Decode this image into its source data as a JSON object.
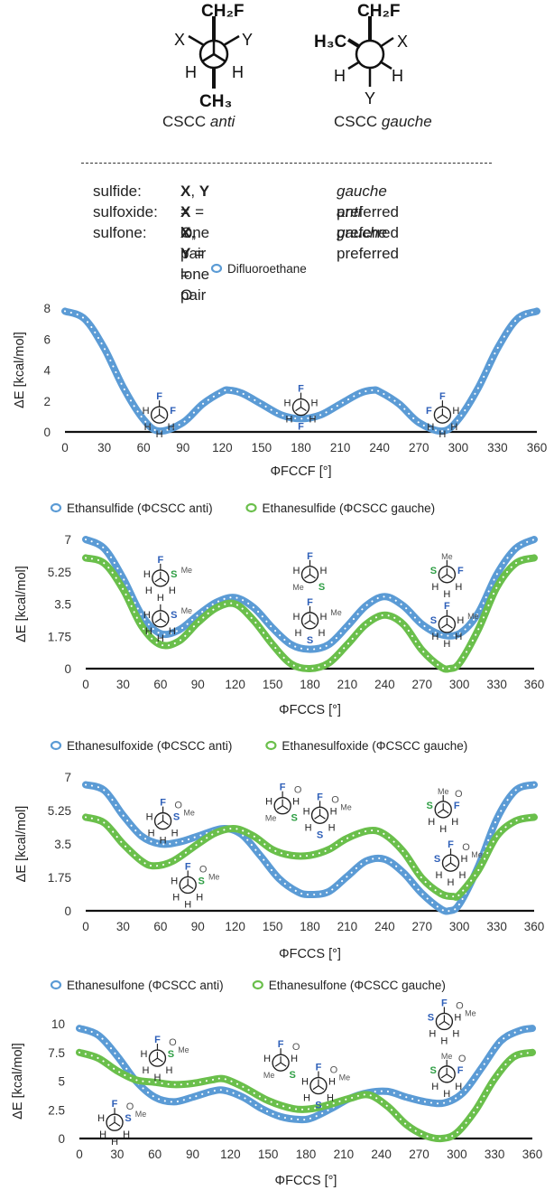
{
  "header": {
    "newman_labels": {
      "anti": {
        "top": "CH₂F",
        "left": "X",
        "right": "Y",
        "lower_left": "H",
        "lower_right": "H",
        "bottom": "CH₃"
      },
      "gauche": {
        "top": "CH₂F",
        "left": "H₃C",
        "right": "X",
        "lower_left": "H",
        "lower_right": "H",
        "bottom": "Y"
      }
    },
    "caption_anti": {
      "prefix": "CSCC ",
      "italic": "anti"
    },
    "caption_gauche": {
      "prefix": "CSCC ",
      "italic": "gauche"
    },
    "rows": [
      {
        "name": "sulfide:",
        "mid_b1": "X",
        "mid_t1": ", ",
        "mid_b2": "Y",
        "mid_t2": " = lone pair",
        "pref_i": "gauche",
        "pref_t": " preferred"
      },
      {
        "name": "sulfoxide:",
        "mid_b1": "X",
        "mid_t1": " = O, ",
        "mid_b2": "Y",
        "mid_t2": " = lone pair",
        "pref_i": "anti",
        "pref_t": " preferred"
      },
      {
        "name": "sulfone:",
        "mid_b1": "X",
        "mid_t1": ", ",
        "mid_b2": "Y",
        "mid_t2": " = O",
        "pref_i": "gauche",
        "pref_t": " preferred"
      }
    ]
  },
  "colors": {
    "blue": "#5b9bd5",
    "green": "#6abf4b",
    "inset_F": "#2e5fb8",
    "inset_S_green": "#2e9e44",
    "inset_S_blue": "#2e5fb8"
  },
  "chart_data": [
    {
      "type": "line",
      "legend": [
        "Difluoroethane"
      ],
      "xlabel": "ΦFCCF [°]",
      "ylabel": "ΔE [kcal/mol]",
      "xlim": [
        0,
        360
      ],
      "xticks": [
        0,
        30,
        60,
        90,
        120,
        150,
        180,
        210,
        240,
        270,
        300,
        330,
        360
      ],
      "ylim": [
        0,
        8
      ],
      "yticks": [
        "0",
        "2",
        "4",
        "6",
        "8"
      ],
      "series": [
        {
          "name": "Difluoroethane",
          "color": "#5b9bd5",
          "x": [
            0,
            15,
            30,
            45,
            60,
            72,
            90,
            105,
            120,
            125,
            135,
            150,
            165,
            180,
            195,
            210,
            225,
            235,
            240,
            255,
            270,
            288,
            300,
            315,
            330,
            345,
            360
          ],
          "y": [
            7.8,
            7.3,
            5.4,
            2.8,
            0.8,
            0.05,
            0.6,
            1.8,
            2.6,
            2.7,
            2.5,
            1.8,
            1.1,
            0.85,
            1.1,
            1.8,
            2.5,
            2.7,
            2.6,
            1.8,
            0.6,
            0.05,
            0.8,
            2.8,
            5.4,
            7.3,
            7.8
          ]
        }
      ],
      "insets": [
        {
          "x": 72,
          "y": 1.1,
          "labels": {
            "top": "F",
            "right": "F",
            "left": "H",
            "ll": "H",
            "lr": "H",
            "bottom": "H"
          }
        },
        {
          "x": 180,
          "y": 1.6,
          "labels": {
            "top": "F",
            "right": "H",
            "left": "H",
            "ll": "H",
            "lr": "H",
            "bottom": "F"
          }
        },
        {
          "x": 288,
          "y": 1.1,
          "labels": {
            "top": "F",
            "right": "H",
            "left": "F",
            "ll": "H",
            "lr": "H",
            "bottom": "H"
          }
        }
      ]
    },
    {
      "type": "line",
      "legend": [
        "Ethansulfide (ΦCSCC anti)",
        "Ethanesulfide (ΦCSCC gauche)"
      ],
      "xlabel": "ΦFCCS [°]",
      "ylabel": "ΔE [kcal/mol]",
      "xlim": [
        0,
        360
      ],
      "xticks": [
        0,
        30,
        60,
        90,
        120,
        150,
        180,
        210,
        240,
        270,
        300,
        330,
        360
      ],
      "ylim": [
        0,
        7
      ],
      "yticks": [
        "0",
        "1.75",
        "3.5",
        "5.25",
        "7"
      ],
      "series": [
        {
          "name": "Ethansulfide (ΦCSCC anti)",
          "color": "#5b9bd5",
          "x": [
            0,
            15,
            30,
            45,
            60,
            75,
            90,
            105,
            120,
            135,
            150,
            165,
            180,
            195,
            210,
            225,
            240,
            255,
            270,
            285,
            300,
            315,
            330,
            345,
            360
          ],
          "y": [
            7.0,
            6.5,
            4.9,
            2.9,
            1.9,
            2.1,
            2.9,
            3.6,
            3.85,
            3.3,
            2.2,
            1.3,
            1.05,
            1.3,
            2.3,
            3.4,
            3.9,
            3.4,
            2.4,
            1.85,
            1.9,
            3.0,
            5.1,
            6.5,
            7.0
          ]
        },
        {
          "name": "Ethanesulfide (ΦCSCC gauche)",
          "color": "#6abf4b",
          "x": [
            0,
            15,
            30,
            45,
            60,
            75,
            90,
            105,
            120,
            135,
            150,
            165,
            180,
            195,
            210,
            225,
            240,
            255,
            270,
            285,
            292,
            300,
            315,
            330,
            345,
            360
          ],
          "y": [
            6.0,
            5.7,
            4.3,
            2.3,
            1.3,
            1.5,
            2.5,
            3.3,
            3.5,
            2.6,
            1.3,
            0.25,
            0.0,
            0.3,
            1.3,
            2.4,
            2.9,
            2.4,
            1.0,
            0.1,
            0.0,
            0.3,
            2.1,
            4.4,
            5.7,
            6.0
          ]
        }
      ],
      "insets": [
        {
          "x": 60,
          "y": 4.9,
          "S": "green",
          "labels": {
            "top": "F",
            "right": "S",
            "left": "H",
            "ll": "H",
            "lr": "H",
            "bottom": "H",
            "me": "Me"
          }
        },
        {
          "x": 60,
          "y": 2.7,
          "S": "blue",
          "labels": {
            "top": "",
            "right": "S",
            "left": "H",
            "ll": "H",
            "lr": "H",
            "bottom": "H",
            "me": "Me"
          }
        },
        {
          "x": 180,
          "y": 5.1,
          "S": "green",
          "labels": {
            "top": "F",
            "right": "H",
            "left": "H",
            "ll": "Me",
            "lr": "S",
            "bottom": "",
            "me": ""
          }
        },
        {
          "x": 180,
          "y": 2.6,
          "S": "blue",
          "labels": {
            "top": "F",
            "right": "H",
            "left": "H",
            "ll": "H",
            "lr": "H",
            "bottom": "S",
            "me": "Me"
          }
        },
        {
          "x": 290,
          "y": 5.1,
          "S": "green",
          "labels": {
            "top": "Me",
            "right": "F",
            "left": "S",
            "ll": "H",
            "lr": "H",
            "bottom": "H",
            "me": ""
          }
        },
        {
          "x": 290,
          "y": 2.4,
          "S": "blue",
          "labels": {
            "top": "F",
            "right": "H",
            "left": "S",
            "ll": "H",
            "lr": "H",
            "bottom": "H",
            "me": "Me"
          }
        }
      ]
    },
    {
      "type": "line",
      "legend": [
        "Ethanesulfoxide (ΦCSCC anti)",
        "Ethanesulfoxide (ΦCSCC gauche)"
      ],
      "xlabel": "ΦFCCS [°]",
      "ylabel": "ΔE [kcal/mol]",
      "xlim": [
        0,
        360
      ],
      "xticks": [
        0,
        30,
        60,
        90,
        120,
        150,
        180,
        210,
        240,
        270,
        300,
        330,
        360
      ],
      "ylim": [
        0,
        7
      ],
      "yticks": [
        "0",
        "1.75",
        "3.5",
        "5.25",
        "7"
      ],
      "series": [
        {
          "name": "Ethanesulfoxide (ΦCSCC anti)",
          "color": "#5b9bd5",
          "x": [
            0,
            15,
            30,
            45,
            60,
            75,
            90,
            110,
            125,
            140,
            155,
            170,
            180,
            195,
            210,
            225,
            240,
            255,
            270,
            285,
            292,
            300,
            315,
            330,
            345,
            360
          ],
          "y": [
            6.6,
            6.3,
            5.0,
            3.9,
            3.5,
            3.6,
            3.9,
            4.3,
            4.0,
            2.9,
            1.7,
            1.0,
            0.85,
            1.0,
            1.8,
            2.6,
            2.7,
            2.0,
            0.9,
            0.1,
            0.0,
            0.35,
            2.3,
            4.8,
            6.3,
            6.6
          ]
        },
        {
          "name": "Ethanesulfoxide (ΦCSCC gauche)",
          "color": "#6abf4b",
          "x": [
            0,
            15,
            30,
            45,
            55,
            70,
            90,
            105,
            120,
            135,
            150,
            165,
            180,
            195,
            210,
            228,
            240,
            255,
            270,
            285,
            295,
            300,
            315,
            330,
            345,
            360
          ],
          "y": [
            4.9,
            4.6,
            3.5,
            2.6,
            2.35,
            2.6,
            3.5,
            4.1,
            4.3,
            3.9,
            3.2,
            2.9,
            2.9,
            3.2,
            3.8,
            4.2,
            4.0,
            3.1,
            1.7,
            0.9,
            0.75,
            0.85,
            2.1,
            3.9,
            4.7,
            4.9
          ]
        }
      ],
      "insets": [
        {
          "x": 62,
          "y": 4.7,
          "S": "blue",
          "labels": {
            "top": "F",
            "right": "S",
            "left": "H",
            "ll": "H",
            "lr": "H",
            "bottom": "H",
            "me": "Me",
            "o": "O"
          }
        },
        {
          "x": 82,
          "y": 1.35,
          "S": "green",
          "labels": {
            "top": "F",
            "right": "S",
            "left": "H",
            "ll": "H",
            "lr": "H",
            "bottom": "H",
            "me": "Me",
            "o": "O"
          }
        },
        {
          "x": 158,
          "y": 5.5,
          "S": "green",
          "labels": {
            "top": "F",
            "right": "H",
            "left": "H",
            "ll": "Me",
            "lr": "S",
            "bottom": "",
            "me": "",
            "o": "O"
          }
        },
        {
          "x": 188,
          "y": 5.0,
          "S": "blue",
          "labels": {
            "top": "F",
            "right": "H",
            "left": "H",
            "ll": "H",
            "lr": "H",
            "bottom": "S",
            "me": "Me",
            "o": "O"
          }
        },
        {
          "x": 287,
          "y": 5.3,
          "S": "green",
          "labels": {
            "top": "Me",
            "right": "F",
            "left": "S",
            "ll": "H",
            "lr": "H",
            "bottom": "H",
            "me": "",
            "o": "O"
          }
        },
        {
          "x": 293,
          "y": 2.5,
          "S": "blue",
          "labels": {
            "top": "F",
            "right": "H",
            "left": "S",
            "ll": "H",
            "lr": "H",
            "bottom": "H",
            "me": "Me",
            "o": "O"
          }
        }
      ]
    },
    {
      "type": "line",
      "legend": [
        "Ethanesulfone (ΦCSCC anti)",
        "Ethanesulfone (ΦCSCC gauche)"
      ],
      "xlabel": "ΦFCCS [°]",
      "ylabel": "ΔE [kcal/mol]",
      "xlim": [
        0,
        360
      ],
      "xticks": [
        0,
        30,
        60,
        90,
        120,
        150,
        180,
        210,
        240,
        270,
        300,
        330,
        360
      ],
      "ylim": [
        0,
        10
      ],
      "yticks": [
        "0",
        "2.5",
        "5",
        "7.5",
        "10"
      ],
      "series": [
        {
          "name": "Ethanesulfone (ΦCSCC anti)",
          "color": "#5b9bd5",
          "x": [
            0,
            15,
            30,
            45,
            60,
            75,
            90,
            105,
            115,
            130,
            145,
            160,
            175,
            185,
            200,
            215,
            230,
            245,
            260,
            275,
            290,
            305,
            320,
            335,
            350,
            360
          ],
          "y": [
            9.6,
            9.0,
            7.2,
            5.0,
            3.6,
            3.2,
            3.6,
            4.1,
            4.2,
            3.6,
            2.6,
            1.9,
            1.65,
            1.8,
            2.6,
            3.5,
            4.0,
            4.1,
            3.6,
            3.2,
            3.1,
            4.0,
            6.2,
            8.5,
            9.4,
            9.6
          ]
        },
        {
          "name": "Ethanesulfone (ΦCSCC gauche)",
          "color": "#6abf4b",
          "x": [
            0,
            15,
            30,
            45,
            60,
            75,
            90,
            105,
            115,
            130,
            150,
            170,
            185,
            200,
            215,
            230,
            245,
            260,
            275,
            288,
            300,
            315,
            330,
            345,
            360
          ],
          "y": [
            7.5,
            7.0,
            5.9,
            5.1,
            4.9,
            4.7,
            4.8,
            5.1,
            5.2,
            4.5,
            3.3,
            2.6,
            2.6,
            3.0,
            3.5,
            3.8,
            2.8,
            1.2,
            0.25,
            0.0,
            0.5,
            2.5,
            5.2,
            7.1,
            7.5
          ]
        }
      ],
      "insets": [
        {
          "x": 62,
          "y": 7.0,
          "S": "green",
          "labels": {
            "top": "F",
            "right": "S",
            "left": "H",
            "ll": "H",
            "lr": "H",
            "bottom": "H",
            "me": "Me",
            "o": "O"
          }
        },
        {
          "x": 28,
          "y": 1.4,
          "S": "blue",
          "labels": {
            "top": "F",
            "right": "S",
            "left": "H",
            "ll": "H",
            "lr": "H",
            "bottom": "H",
            "me": "Me",
            "o": "O"
          }
        },
        {
          "x": 160,
          "y": 6.6,
          "S": "green",
          "labels": {
            "top": "F",
            "right": "H",
            "left": "H",
            "ll": "Me",
            "lr": "S",
            "bottom": "",
            "me": "",
            "o": "O"
          }
        },
        {
          "x": 190,
          "y": 4.6,
          "S": "blue",
          "labels": {
            "top": "F",
            "right": "H",
            "left": "H",
            "ll": "H",
            "lr": "H",
            "bottom": "S",
            "me": "Me",
            "o": "O"
          }
        },
        {
          "x": 290,
          "y": 10.2,
          "S": "blue",
          "labels": {
            "top": "F",
            "right": "H",
            "left": "S",
            "ll": "H",
            "lr": "H",
            "bottom": "H",
            "me": "Me",
            "o": "O"
          }
        },
        {
          "x": 292,
          "y": 5.6,
          "S": "green",
          "labels": {
            "top": "Me",
            "right": "F",
            "left": "S",
            "ll": "H",
            "lr": "H",
            "bottom": "H",
            "me": "",
            "o": "O"
          }
        }
      ]
    }
  ]
}
